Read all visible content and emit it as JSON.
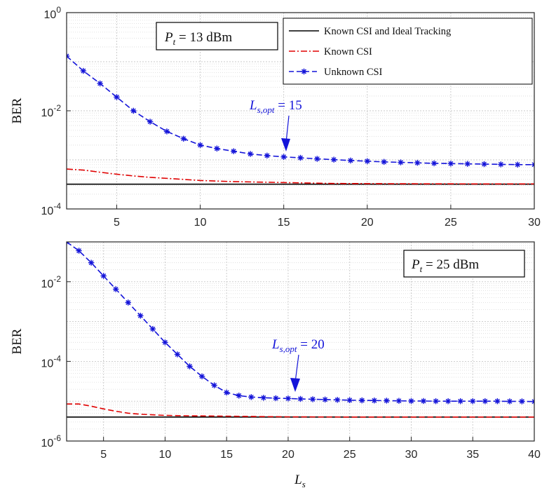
{
  "chart_data": [
    {
      "type": "line",
      "xlabel": "",
      "ylabel": "BER",
      "xlim": [
        2,
        30
      ],
      "ylim": [
        0.0001,
        1
      ],
      "yscale": "log",
      "xticks": [
        5,
        10,
        15,
        20,
        25,
        30
      ],
      "yticks": [
        {
          "base": "10",
          "exp": "-4",
          "value": 0.0001
        },
        {
          "base": "10",
          "exp": "-2",
          "value": 0.01
        },
        {
          "base": "10",
          "exp": "0",
          "value": 1
        }
      ],
      "grid": true,
      "legend_position": "top-right",
      "series": [
        {
          "name": "Known CSI and Ideal Tracking",
          "color": "#000000",
          "style": "solid",
          "x": [
            2,
            30
          ],
          "y": [
            0.00032,
            0.00032
          ]
        },
        {
          "name": "Known CSI",
          "color": "#e00000",
          "style": "dashdot",
          "x": [
            2,
            3,
            4,
            5,
            6,
            7,
            8,
            9,
            10,
            12,
            14,
            16,
            18,
            20,
            22,
            24,
            26,
            28,
            30
          ],
          "y": [
            0.00065,
            0.00062,
            0.00056,
            0.00051,
            0.00047,
            0.00044,
            0.00042,
            0.0004,
            0.00038,
            0.00036,
            0.00035,
            0.00034,
            0.00033,
            0.000328,
            0.000326,
            0.000325,
            0.000324,
            0.000323,
            0.000323
          ]
        },
        {
          "name": "Unknown CSI",
          "color": "#1414d9",
          "style": "dashed-star",
          "x": [
            2,
            3,
            4,
            5,
            6,
            7,
            8,
            9,
            10,
            11,
            12,
            13,
            14,
            15,
            16,
            17,
            18,
            19,
            20,
            21,
            22,
            23,
            24,
            25,
            26,
            27,
            28,
            29,
            30
          ],
          "y": [
            0.13,
            0.065,
            0.036,
            0.019,
            0.01,
            0.006,
            0.0038,
            0.0027,
            0.002,
            0.0017,
            0.0015,
            0.00132,
            0.00122,
            0.00115,
            0.0011,
            0.00105,
            0.00101,
            0.00097,
            0.00094,
            0.00091,
            0.00089,
            0.00087,
            0.00085,
            0.00084,
            0.00083,
            0.00082,
            0.00081,
            0.0008,
            0.0008
          ]
        }
      ],
      "textbox": {
        "label": "P",
        "sub": "t",
        "rest": " = 13 dBm"
      },
      "annotation": {
        "label": "L",
        "sub": "s,opt",
        "rest": " = 15",
        "x": 15.3,
        "y": 0.00112
      }
    },
    {
      "type": "line",
      "xlabel": "Ls",
      "xlabel_main": "L",
      "xlabel_sub": "s",
      "ylabel": "BER",
      "xlim": [
        2,
        40
      ],
      "ylim": [
        1e-06,
        0.1
      ],
      "yscale": "log",
      "xticks": [
        5,
        10,
        15,
        20,
        25,
        30,
        35,
        40
      ],
      "yticks": [
        {
          "base": "10",
          "exp": "-6",
          "value": 1e-06
        },
        {
          "base": "10",
          "exp": "-4",
          "value": 0.0001
        },
        {
          "base": "10",
          "exp": "-2",
          "value": 0.01
        }
      ],
      "grid": true,
      "series": [
        {
          "name": "Known CSI and Ideal Tracking",
          "color": "#000000",
          "style": "solid",
          "x": [
            2,
            40
          ],
          "y": [
            4e-06,
            4e-06
          ]
        },
        {
          "name": "Known CSI",
          "color": "#e00000",
          "style": "dashed",
          "x": [
            2,
            3,
            4,
            5,
            6,
            7,
            8,
            10,
            12,
            15,
            18,
            20,
            25,
            30,
            35,
            40
          ],
          "y": [
            8.5e-06,
            8.5e-06,
            7.5e-06,
            6.4e-06,
            5.6e-06,
            5e-06,
            4.7e-06,
            4.4e-06,
            4.3e-06,
            4.2e-06,
            4.1e-06,
            4.05e-06,
            4e-06,
            4e-06,
            4e-06,
            4e-06
          ]
        },
        {
          "name": "Unknown CSI",
          "color": "#1414d9",
          "style": "dashed-star",
          "x": [
            2,
            3,
            4,
            5,
            6,
            7,
            8,
            9,
            10,
            11,
            12,
            13,
            14,
            15,
            16,
            17,
            18,
            19,
            20,
            21,
            22,
            23,
            24,
            25,
            26,
            27,
            28,
            29,
            30,
            31,
            32,
            33,
            34,
            35,
            36,
            37,
            38,
            39,
            40
          ],
          "y": [
            0.1,
            0.06,
            0.03,
            0.014,
            0.0065,
            0.003,
            0.0014,
            0.00065,
            0.0003,
            0.00015,
            7.5e-05,
            4.2e-05,
            2.5e-05,
            1.65e-05,
            1.38e-05,
            1.27e-05,
            1.22e-05,
            1.19e-05,
            1.17e-05,
            1.14e-05,
            1.12e-05,
            1.1e-05,
            1.08e-05,
            1.06e-05,
            1.05e-05,
            1.04e-05,
            1.03e-05,
            1.02e-05,
            1.01e-05,
            1.01e-05,
            1e-05,
            1e-05,
            1e-05,
            1e-05,
            1e-05,
            1e-05,
            9.9e-06,
            9.9e-06,
            9.8e-06
          ]
        }
      ],
      "textbox": {
        "label": "P",
        "sub": "t",
        "rest": " = 25 dBm"
      },
      "annotation": {
        "label": "L",
        "sub": "s,opt",
        "rest": " = 20",
        "x": 20.5,
        "y": 1.22e-05
      }
    }
  ]
}
